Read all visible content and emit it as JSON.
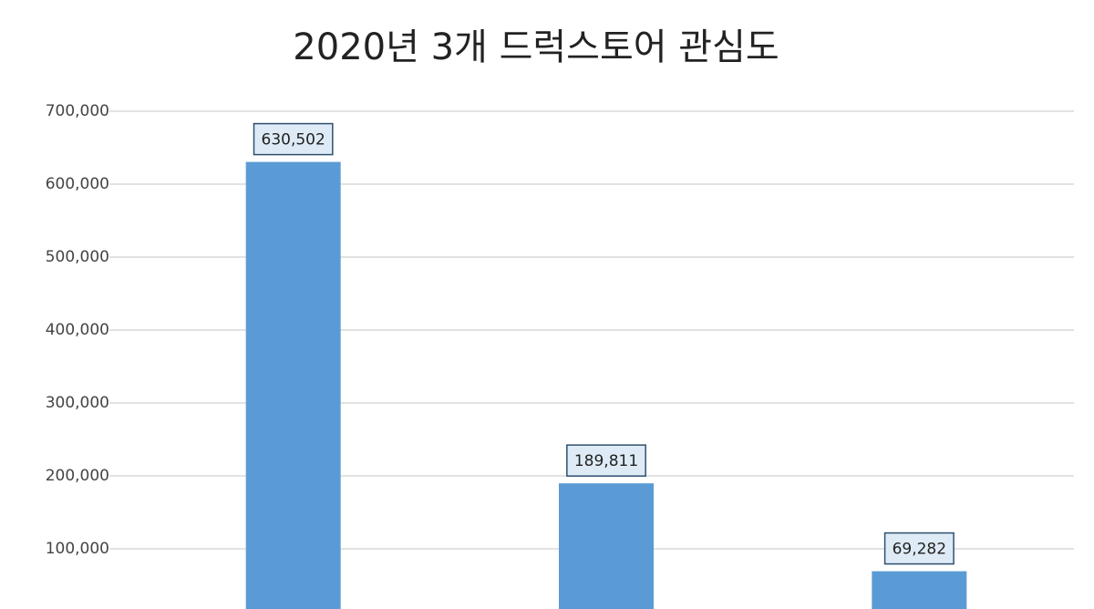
{
  "chart_data": {
    "type": "bar",
    "title": "2020년 3개 드럭스토어 관심도",
    "categories": [
      null,
      null,
      null
    ],
    "values": [
      630502,
      189811,
      69282
    ],
    "value_labels": [
      "630,502",
      "189,811",
      "69,282"
    ],
    "color": "#5b9bd5",
    "ylim": [
      0,
      700000
    ],
    "yticks": [
      {
        "value": 100000,
        "label": "100,000"
      },
      {
        "value": 200000,
        "label": "200,000"
      },
      {
        "value": 300000,
        "label": "300,000"
      },
      {
        "value": 400000,
        "label": "400,000"
      },
      {
        "value": 500000,
        "label": "500,000"
      },
      {
        "value": 600000,
        "label": "600,000"
      },
      {
        "value": 700000,
        "label": "700,000"
      }
    ],
    "grid": true
  }
}
